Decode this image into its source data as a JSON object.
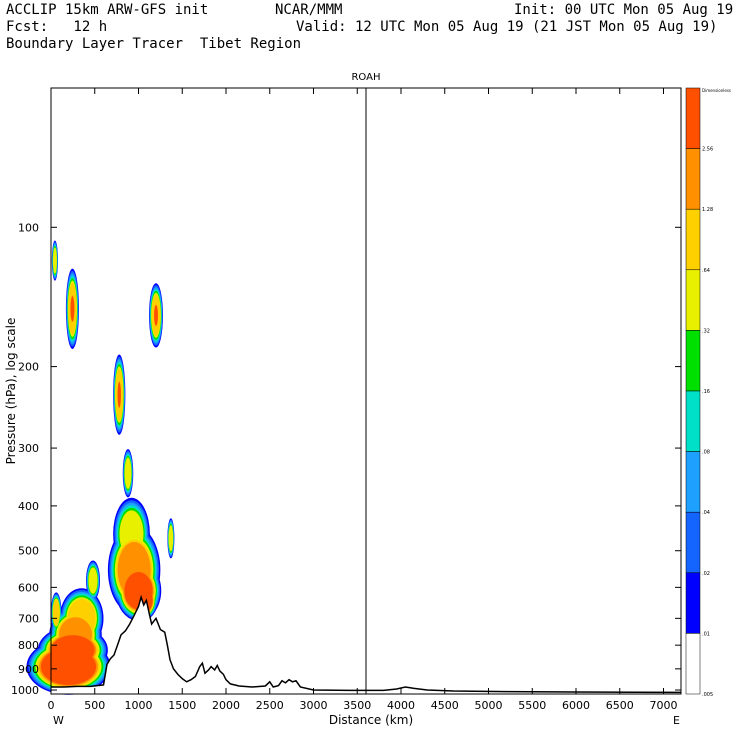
{
  "header": {
    "line1_left": "ACCLIP 15km ARW-GFS init",
    "line1_mid": "NCAR/MMM",
    "line1_right": "Init: 00 UTC Mon 05 Aug 19",
    "line2_left": "Fcst:   12 h",
    "line2_right": "Valid: 12 UTC Mon 05 Aug 19 (21 JST Mon 05 Aug 19)",
    "line3_left": "Boundary Layer Tracer  Tibet Region"
  },
  "chart_data": {
    "type": "heatmap",
    "title": "ROAH",
    "xlabel": "Distance (km)",
    "ylabel": "Pressure (hPa), log scale",
    "x_ticks": [
      "0",
      "500",
      "1000",
      "1500",
      "2000",
      "2500",
      "3000",
      "3500",
      "4000",
      "4500",
      "5000",
      "5500",
      "6000",
      "6500",
      "7000"
    ],
    "y_ticks": [
      "100",
      "200",
      "300",
      "400",
      "500",
      "600",
      "700",
      "800",
      "900",
      "1000"
    ],
    "y_scale": "log",
    "xlim": [
      0,
      7200
    ],
    "ylim": [
      1020,
      50
    ],
    "x_left_label": "W",
    "x_right_label": "E",
    "marker_line_x_km": 3600,
    "colorbar": {
      "unit_label": "Dimensionless",
      "levels": [
        "2.56",
        "1.28",
        ".64",
        ".32",
        ".16",
        ".08",
        ".04",
        ".02",
        ".01",
        ".005"
      ],
      "colors": [
        "#ffffff",
        "#0000ff",
        "#1464ff",
        "#1ea0ff",
        "#00e0c8",
        "#00e000",
        "#e8f000",
        "#ffd000",
        "#ff9000",
        "#ff5000"
      ]
    },
    "terrain": [
      [
        0,
        985
      ],
      [
        150,
        985
      ],
      [
        300,
        982
      ],
      [
        450,
        982
      ],
      [
        600,
        975
      ],
      [
        640,
        880
      ],
      [
        680,
        855
      ],
      [
        720,
        840
      ],
      [
        760,
        800
      ],
      [
        800,
        760
      ],
      [
        850,
        745
      ],
      [
        900,
        720
      ],
      [
        950,
        690
      ],
      [
        1000,
        660
      ],
      [
        1030,
        630
      ],
      [
        1060,
        655
      ],
      [
        1090,
        640
      ],
      [
        1120,
        680
      ],
      [
        1150,
        720
      ],
      [
        1200,
        700
      ],
      [
        1250,
        740
      ],
      [
        1300,
        750
      ],
      [
        1330,
        800
      ],
      [
        1360,
        860
      ],
      [
        1400,
        900
      ],
      [
        1450,
        925
      ],
      [
        1500,
        945
      ],
      [
        1550,
        960
      ],
      [
        1600,
        950
      ],
      [
        1650,
        935
      ],
      [
        1700,
        890
      ],
      [
        1730,
        875
      ],
      [
        1760,
        920
      ],
      [
        1800,
        905
      ],
      [
        1830,
        890
      ],
      [
        1870,
        905
      ],
      [
        1900,
        885
      ],
      [
        1930,
        910
      ],
      [
        1970,
        925
      ],
      [
        2000,
        950
      ],
      [
        2050,
        970
      ],
      [
        2150,
        980
      ],
      [
        2300,
        985
      ],
      [
        2450,
        980
      ],
      [
        2500,
        960
      ],
      [
        2540,
        985
      ],
      [
        2600,
        978
      ],
      [
        2640,
        955
      ],
      [
        2680,
        965
      ],
      [
        2720,
        950
      ],
      [
        2760,
        960
      ],
      [
        2800,
        955
      ],
      [
        2850,
        985
      ],
      [
        3000,
        1000
      ],
      [
        3400,
        1002
      ],
      [
        3800,
        1002
      ],
      [
        3950,
        995
      ],
      [
        4050,
        985
      ],
      [
        4150,
        992
      ],
      [
        4300,
        1000
      ],
      [
        4600,
        1005
      ],
      [
        5200,
        1008
      ],
      [
        6000,
        1010
      ],
      [
        7200,
        1012
      ]
    ],
    "blobs": [
      {
        "x": 45,
        "p": 118,
        "rx": 35,
        "rh": 0.1,
        "lvl": 6
      },
      {
        "x": 245,
        "p": 150,
        "rx": 75,
        "rh": 0.2,
        "lvl": 7
      },
      {
        "x": 245,
        "p": 150,
        "rx": 35,
        "rh": 0.1,
        "lvl": 9
      },
      {
        "x": 1200,
        "p": 155,
        "rx": 80,
        "rh": 0.16,
        "lvl": 7
      },
      {
        "x": 1200,
        "p": 155,
        "rx": 35,
        "rh": 0.08,
        "lvl": 9
      },
      {
        "x": 780,
        "p": 230,
        "rx": 70,
        "rh": 0.2,
        "lvl": 7
      },
      {
        "x": 780,
        "p": 230,
        "rx": 30,
        "rh": 0.1,
        "lvl": 9
      },
      {
        "x": 880,
        "p": 340,
        "rx": 60,
        "rh": 0.12,
        "lvl": 6
      },
      {
        "x": 1370,
        "p": 470,
        "rx": 40,
        "rh": 0.1,
        "lvl": 6
      },
      {
        "x": 920,
        "p": 460,
        "rx": 210,
        "rh": 0.18,
        "lvl": 6
      },
      {
        "x": 950,
        "p": 550,
        "rx": 300,
        "rh": 0.22,
        "lvl": 8
      },
      {
        "x": 1000,
        "p": 610,
        "rx": 260,
        "rh": 0.15,
        "lvl": 9
      },
      {
        "x": 1050,
        "p": 640,
        "rx": 170,
        "rh": 0.1,
        "lvl": 10
      },
      {
        "x": 350,
        "p": 700,
        "rx": 250,
        "rh": 0.15,
        "lvl": 7
      },
      {
        "x": 280,
        "p": 760,
        "rx": 300,
        "rh": 0.14,
        "lvl": 8
      },
      {
        "x": 250,
        "p": 820,
        "rx": 400,
        "rh": 0.12,
        "lvl": 9
      },
      {
        "x": 200,
        "p": 890,
        "rx": 480,
        "rh": 0.14,
        "lvl": 10
      },
      {
        "x": 480,
        "p": 580,
        "rx": 80,
        "rh": 0.1,
        "lvl": 6
      },
      {
        "x": 60,
        "p": 680,
        "rx": 60,
        "rh": 0.1,
        "lvl": 7
      }
    ]
  }
}
